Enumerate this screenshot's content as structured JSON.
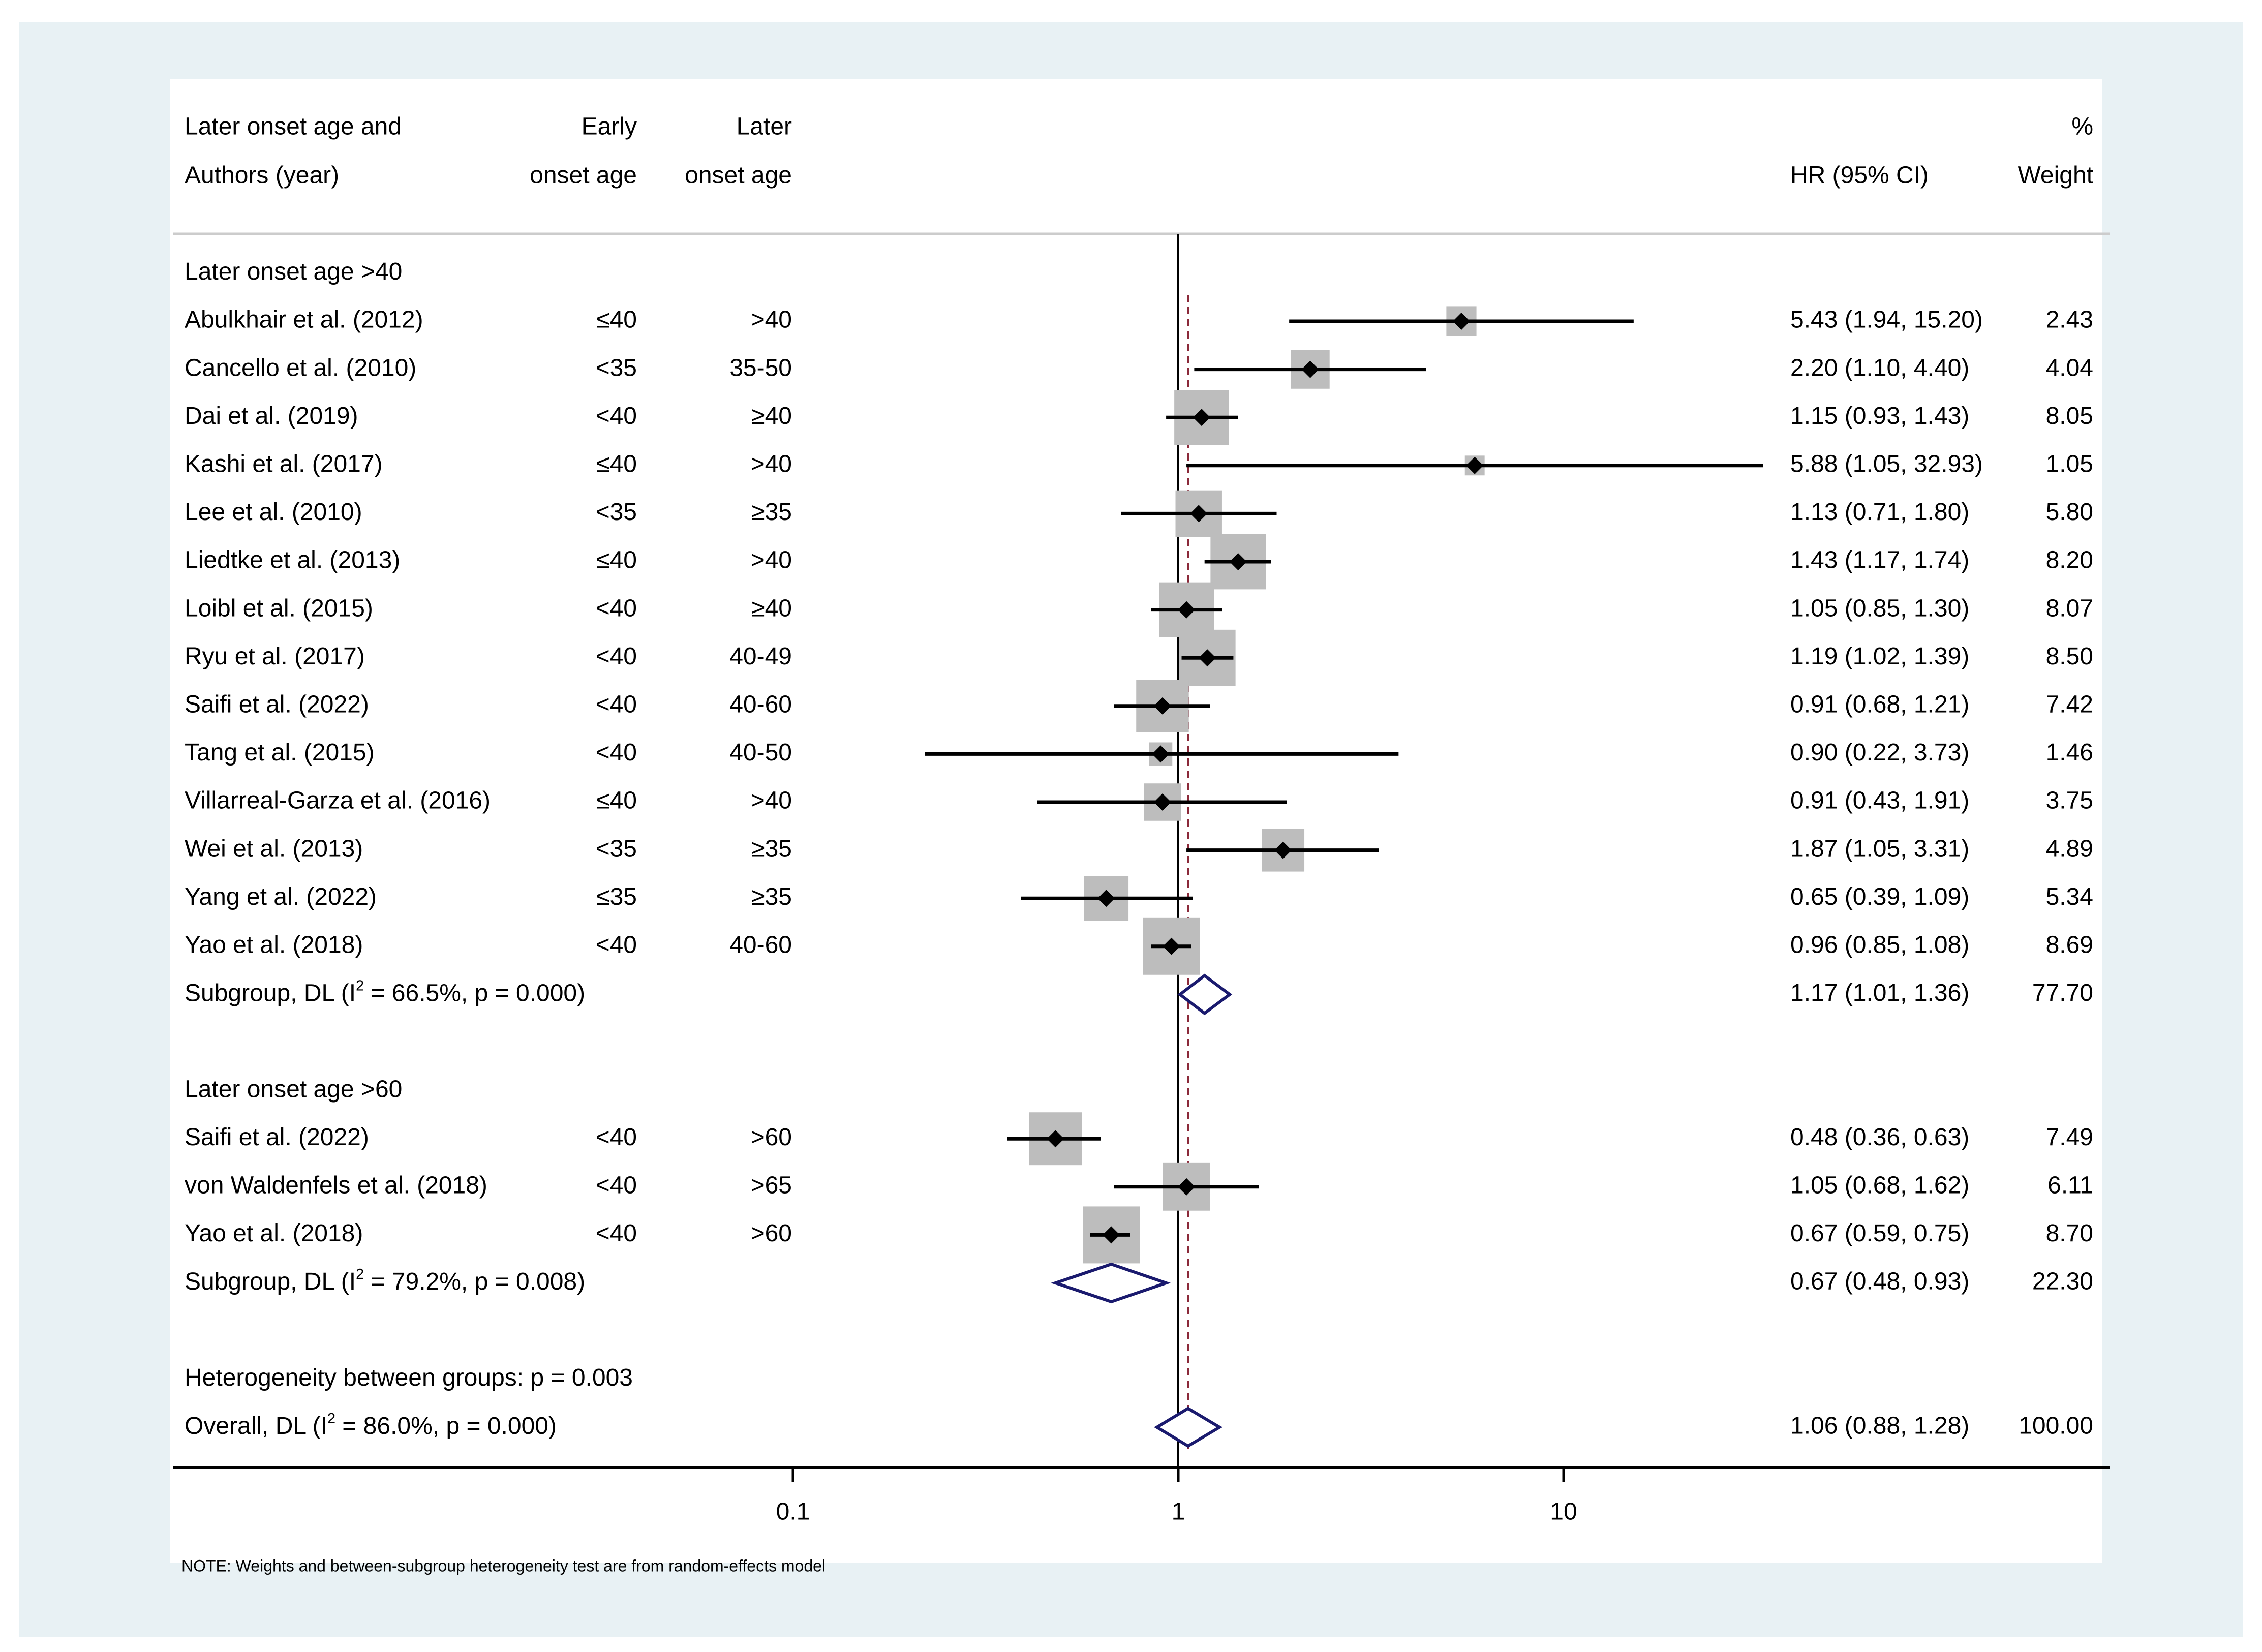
{
  "chart_data": {
    "type": "forest",
    "scale": "log",
    "x_ticks": [
      0.1,
      1,
      10
    ],
    "x_tick_labels": [
      "0.1",
      "1",
      "10"
    ],
    "reference_line": 1,
    "overall_line": 1.06,
    "header": {
      "col1_line1": "Later onset age and",
      "col1_line2": "Authors (year)",
      "col2_line1": "Early",
      "col2_line2": "onset age",
      "col3_line1": "Later",
      "col3_line2": "onset age",
      "hr_label": "HR (95% CI)",
      "weight_line1": "%",
      "weight_line2": "Weight"
    },
    "subgroups": [
      {
        "label": "Later onset age >40",
        "studies": [
          {
            "study": "Abulkhair et al. (2012)",
            "early": "≤40",
            "later": ">40",
            "hr": 5.43,
            "lo": 1.94,
            "hi": 15.2,
            "ci_text": "5.43 (1.94, 15.20)",
            "weight": "2.43"
          },
          {
            "study": "Cancello et al. (2010)",
            "early": "<35",
            "later": "35-50",
            "hr": 2.2,
            "lo": 1.1,
            "hi": 4.4,
            "ci_text": "2.20 (1.10, 4.40)",
            "weight": "4.04"
          },
          {
            "study": "Dai et al. (2019)",
            "early": "<40",
            "later": "≥40",
            "hr": 1.15,
            "lo": 0.93,
            "hi": 1.43,
            "ci_text": "1.15 (0.93, 1.43)",
            "weight": "8.05"
          },
          {
            "study": "Kashi et al. (2017)",
            "early": "≤40",
            "later": ">40",
            "hr": 5.88,
            "lo": 1.05,
            "hi": 32.93,
            "ci_text": "5.88 (1.05, 32.93)",
            "weight": "1.05"
          },
          {
            "study": "Lee et al. (2010)",
            "early": "<35",
            "later": "≥35",
            "hr": 1.13,
            "lo": 0.71,
            "hi": 1.8,
            "ci_text": "1.13 (0.71, 1.80)",
            "weight": "5.80"
          },
          {
            "study": "Liedtke et al. (2013)",
            "early": "≤40",
            "later": ">40",
            "hr": 1.43,
            "lo": 1.17,
            "hi": 1.74,
            "ci_text": "1.43 (1.17, 1.74)",
            "weight": "8.20"
          },
          {
            "study": "Loibl et al. (2015)",
            "early": "<40",
            "later": "≥40",
            "hr": 1.05,
            "lo": 0.85,
            "hi": 1.3,
            "ci_text": "1.05 (0.85, 1.30)",
            "weight": "8.07"
          },
          {
            "study": "Ryu et al. (2017)",
            "early": "<40",
            "later": "40-49",
            "hr": 1.19,
            "lo": 1.02,
            "hi": 1.39,
            "ci_text": "1.19 (1.02, 1.39)",
            "weight": "8.50"
          },
          {
            "study": "Saifi et al. (2022)",
            "early": "<40",
            "later": "40-60",
            "hr": 0.91,
            "lo": 0.68,
            "hi": 1.21,
            "ci_text": "0.91 (0.68, 1.21)",
            "weight": "7.42"
          },
          {
            "study": "Tang et al. (2015)",
            "early": "<40",
            "later": "40-50",
            "hr": 0.9,
            "lo": 0.22,
            "hi": 3.73,
            "ci_text": "0.90 (0.22, 3.73)",
            "weight": "1.46"
          },
          {
            "study": "Villarreal-Garza et al. (2016)",
            "early": "≤40",
            "later": ">40",
            "hr": 0.91,
            "lo": 0.43,
            "hi": 1.91,
            "ci_text": "0.91 (0.43, 1.91)",
            "weight": "3.75"
          },
          {
            "study": "Wei et al. (2013)",
            "early": "<35",
            "later": "≥35",
            "hr": 1.87,
            "lo": 1.05,
            "hi": 3.31,
            "ci_text": "1.87 (1.05, 3.31)",
            "weight": "4.89"
          },
          {
            "study": "Yang et al. (2022)",
            "early": "≤35",
            "later": "≥35",
            "hr": 0.65,
            "lo": 0.39,
            "hi": 1.09,
            "ci_text": "0.65 (0.39, 1.09)",
            "weight": "5.34"
          },
          {
            "study": "Yao et al. (2018)",
            "early": "<40",
            "later": "40-60",
            "hr": 0.96,
            "lo": 0.85,
            "hi": 1.08,
            "ci_text": "0.96 (0.85, 1.08)",
            "weight": "8.69"
          }
        ],
        "summary": {
          "label_pre": "Subgroup, DL (I",
          "label_post": " = 66.5%, p = 0.000)",
          "hr": 1.17,
          "lo": 1.01,
          "hi": 1.36,
          "ci_text": "1.17 (1.01, 1.36)",
          "weight": "77.70"
        }
      },
      {
        "label": "Later onset age >60",
        "studies": [
          {
            "study": "Saifi et al. (2022)",
            "early": "<40",
            "later": ">60",
            "hr": 0.48,
            "lo": 0.36,
            "hi": 0.63,
            "ci_text": "0.48 (0.36, 0.63)",
            "weight": "7.49"
          },
          {
            "study": "von Waldenfels et al. (2018)",
            "early": "<40",
            "later": ">65",
            "hr": 1.05,
            "lo": 0.68,
            "hi": 1.62,
            "ci_text": "1.05 (0.68, 1.62)",
            "weight": "6.11"
          },
          {
            "study": "Yao et al. (2018)",
            "early": "<40",
            "later": ">60",
            "hr": 0.67,
            "lo": 0.59,
            "hi": 0.75,
            "ci_text": "0.67 (0.59, 0.75)",
            "weight": "8.70"
          }
        ],
        "summary": {
          "label_pre": "Subgroup, DL (I",
          "label_post": " = 79.2%, p = 0.008)",
          "hr": 0.67,
          "lo": 0.48,
          "hi": 0.93,
          "ci_text": "0.67 (0.48, 0.93)",
          "weight": "22.30"
        }
      }
    ],
    "heterogeneity_text": "Heterogeneity between groups: p = 0.003",
    "overall": {
      "label_pre": "Overall, DL (I",
      "label_post": " = 86.0%, p = 0.000)",
      "hr": 1.06,
      "lo": 0.88,
      "hi": 1.28,
      "ci_text": "1.06 (0.88, 1.28)",
      "weight": "100.00"
    },
    "superscript": "2",
    "note": "NOTE: Weights and between-subgroup heterogeneity test are from random-effects model",
    "colors": {
      "background": "#e8f1f4",
      "panel": "#ffffff",
      "box": "#bdbdbd",
      "diamond": "#1a1a6e",
      "overall_line": "#8b2a3a",
      "header_divider": "#cccccc",
      "ink": "#000000"
    }
  }
}
